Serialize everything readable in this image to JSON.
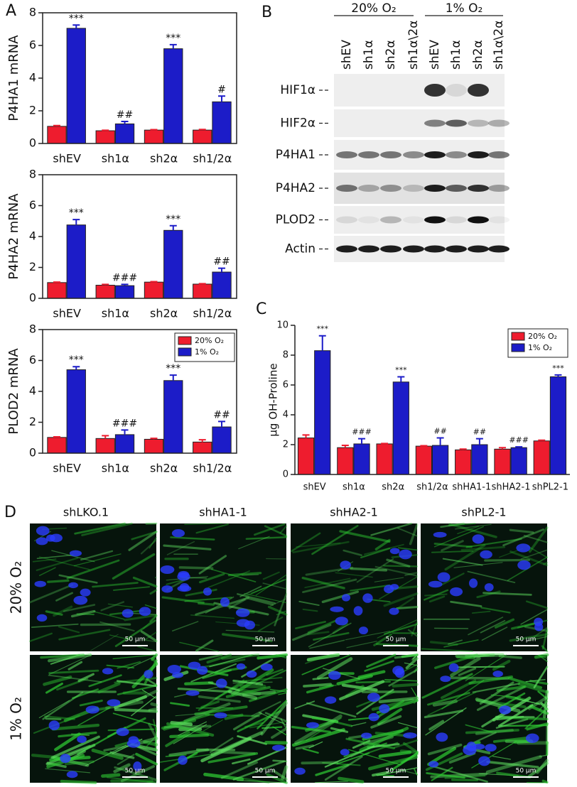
{
  "panel_labels": [
    "A",
    "B",
    "C",
    "D"
  ],
  "chart_data": [
    {
      "type": "bar",
      "y_label": "P4HA1 mRNA",
      "categories": [
        "shEV",
        "sh1α",
        "sh2α",
        "sh1/2α"
      ],
      "series": [
        {
          "color": "#ee1c2e",
          "values": [
            1.05,
            0.78,
            0.82,
            0.82
          ],
          "errors": [
            0.05,
            0.03,
            0.03,
            0.04
          ]
        },
        {
          "color": "#1c1cc8",
          "values": [
            7.05,
            1.2,
            5.8,
            2.55
          ],
          "errors": [
            0.2,
            0.15,
            0.25,
            0.35
          ],
          "annotations": [
            "***",
            "##",
            "***",
            "#"
          ]
        }
      ],
      "ylim": [
        0,
        8
      ],
      "yticks": [
        0,
        2,
        4,
        6,
        8
      ],
      "legend": false
    },
    {
      "type": "bar",
      "y_label": "P4HA2 mRNA",
      "categories": [
        "shEV",
        "sh1α",
        "sh2α",
        "sh1/2α"
      ],
      "series": [
        {
          "color": "#ee1c2e",
          "values": [
            1.02,
            0.85,
            1.05,
            0.92
          ],
          "errors": [
            0.03,
            0.05,
            0.03,
            0.03
          ]
        },
        {
          "color": "#1c1cc8",
          "values": [
            4.75,
            0.82,
            4.4,
            1.7
          ],
          "errors": [
            0.35,
            0.08,
            0.3,
            0.25
          ],
          "annotations": [
            "***",
            "###",
            "***",
            "##"
          ]
        }
      ],
      "ylim": [
        0,
        8
      ],
      "yticks": [
        0,
        2,
        4,
        6,
        8
      ],
      "legend": false
    },
    {
      "type": "bar",
      "y_label": "PLOD2 mRNA",
      "categories": [
        "shEV",
        "sh1α",
        "sh2α",
        "sh1/2α"
      ],
      "series": [
        {
          "name": "20% O₂",
          "color": "#ee1c2e",
          "values": [
            1.02,
            0.95,
            0.9,
            0.72
          ],
          "errors": [
            0.04,
            0.18,
            0.06,
            0.15
          ]
        },
        {
          "name": "1% O₂",
          "color": "#1c1cc8",
          "values": [
            5.4,
            1.2,
            4.7,
            1.7
          ],
          "errors": [
            0.2,
            0.3,
            0.35,
            0.35
          ],
          "annotations": [
            "***",
            "###",
            "***",
            "##"
          ]
        }
      ],
      "ylim": [
        0,
        8
      ],
      "yticks": [
        0,
        2,
        4,
        6,
        8
      ],
      "legend": "upper right"
    },
    {
      "type": "bar",
      "y_label": "μg OH-Proline",
      "categories": [
        "shEV",
        "sh1α",
        "sh2α",
        "sh1/2α",
        "shHA1-1",
        "shHA2-1",
        "shPL2-1"
      ],
      "series": [
        {
          "name": "20% O₂",
          "color": "#ee1c2e",
          "values": [
            2.45,
            1.8,
            2.05,
            1.9,
            1.65,
            1.7,
            2.25
          ],
          "errors": [
            0.2,
            0.15,
            0.03,
            0.03,
            0.05,
            0.1,
            0.05
          ]
        },
        {
          "name": "1% O₂",
          "color": "#1c1cc8",
          "values": [
            8.3,
            2.05,
            6.2,
            1.95,
            2.0,
            1.8,
            6.55
          ],
          "errors": [
            1.0,
            0.35,
            0.35,
            0.5,
            0.4,
            0.05,
            0.12
          ],
          "annotations": [
            "***",
            "###",
            "***",
            "##",
            "##",
            "###",
            "***"
          ]
        }
      ],
      "ylim": [
        0,
        10
      ],
      "yticks": [
        0,
        2,
        4,
        6,
        8,
        10
      ],
      "legend": "upper right"
    }
  ],
  "western_blot": {
    "conditions": [
      "20% O₂",
      "1% O₂"
    ],
    "lanes": [
      "shEV",
      "sh1α",
      "sh2α",
      "sh1α\\2α"
    ],
    "proteins": [
      "HIF1α",
      "HIF2α",
      "P4HA1",
      "P4HA2",
      "PLOD2",
      "Actin"
    ]
  },
  "microscopy": {
    "columns": [
      "shLKO.1",
      "shHA1-1",
      "shHA2-1",
      "shPL2-1"
    ],
    "rows": [
      "20% O₂",
      "1% O₂"
    ],
    "scale_bar": "50 μm"
  }
}
